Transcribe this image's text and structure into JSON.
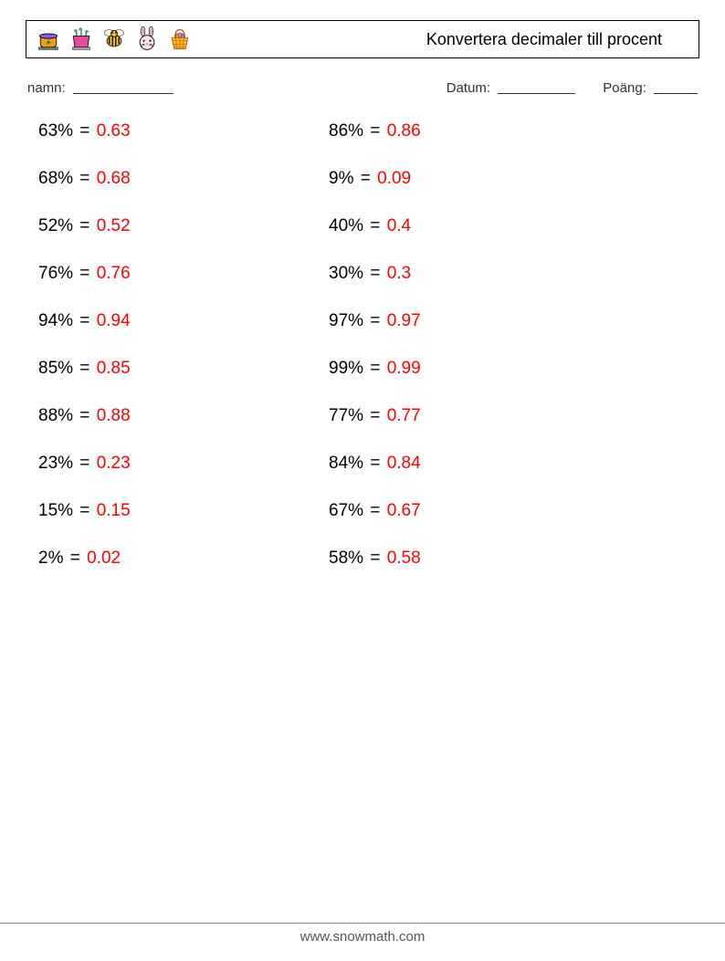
{
  "header": {
    "title": "Konvertera decimaler till procent",
    "icons": [
      {
        "name": "cauldron-icon"
      },
      {
        "name": "sprouts-icon"
      },
      {
        "name": "bee-icon"
      },
      {
        "name": "bunny-icon"
      },
      {
        "name": "basket-icon"
      }
    ]
  },
  "info_labels": {
    "name": "namn:",
    "date": "Datum:",
    "score": "Poäng:"
  },
  "answer_color": "#ff0000",
  "text_color": "#000000",
  "font_size_problems": 19,
  "problems": {
    "left": [
      {
        "percent": "63%",
        "decimal": "0.63"
      },
      {
        "percent": "68%",
        "decimal": "0.68"
      },
      {
        "percent": "52%",
        "decimal": "0.52"
      },
      {
        "percent": "76%",
        "decimal": "0.76"
      },
      {
        "percent": "94%",
        "decimal": "0.94"
      },
      {
        "percent": "85%",
        "decimal": "0.85"
      },
      {
        "percent": "88%",
        "decimal": "0.88"
      },
      {
        "percent": "23%",
        "decimal": "0.23"
      },
      {
        "percent": "15%",
        "decimal": "0.15"
      },
      {
        "percent": "2%",
        "decimal": "0.02"
      }
    ],
    "right": [
      {
        "percent": "86%",
        "decimal": "0.86"
      },
      {
        "percent": "9%",
        "decimal": "0.09"
      },
      {
        "percent": "40%",
        "decimal": "0.4"
      },
      {
        "percent": "30%",
        "decimal": "0.3"
      },
      {
        "percent": "97%",
        "decimal": "0.97"
      },
      {
        "percent": "99%",
        "decimal": "0.99"
      },
      {
        "percent": "77%",
        "decimal": "0.77"
      },
      {
        "percent": "84%",
        "decimal": "0.84"
      },
      {
        "percent": "67%",
        "decimal": "0.67"
      },
      {
        "percent": "58%",
        "decimal": "0.58"
      }
    ]
  },
  "footer": {
    "url": "www.snowmath.com"
  }
}
